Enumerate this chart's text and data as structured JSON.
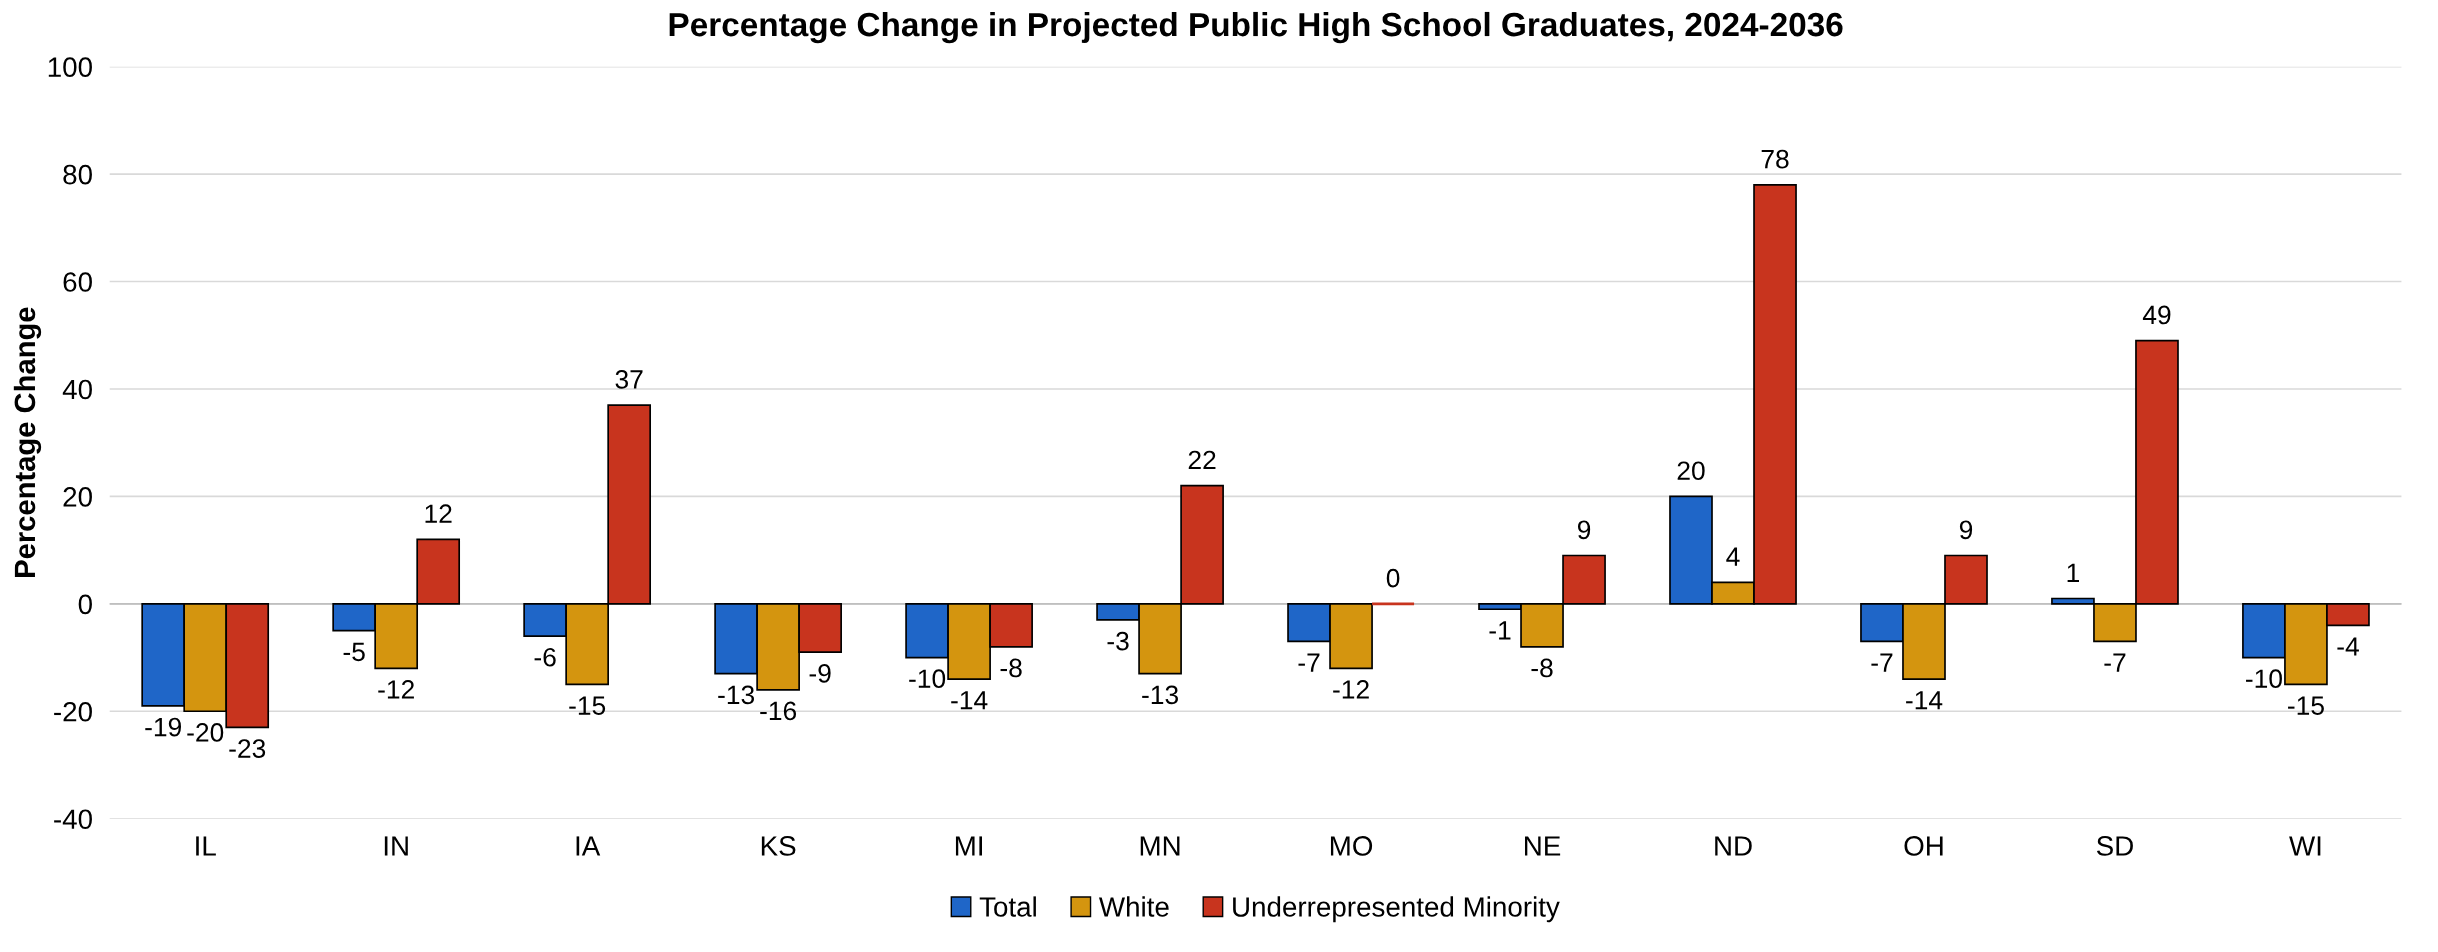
{
  "chart_data": {
    "type": "bar",
    "title": "Percentage Change in Projected Public High School Graduates, 2024-2036",
    "ylabel": "Percentage Change",
    "categories": [
      "IL",
      "IN",
      "IA",
      "KS",
      "MI",
      "MN",
      "MO",
      "NE",
      "ND",
      "OH",
      "SD",
      "WI"
    ],
    "series": [
      {
        "name": "Total",
        "color": "#1f66c8",
        "values": [
          -19,
          -5,
          -6,
          -13,
          -10,
          -3,
          -7,
          -1,
          20,
          -7,
          1,
          -10
        ]
      },
      {
        "name": "White",
        "color": "#d4950f",
        "values": [
          -20,
          -12,
          -15,
          -16,
          -14,
          -13,
          -12,
          -8,
          4,
          -14,
          -7,
          -15
        ]
      },
      {
        "name": "Underrepresented Minority",
        "color": "#c8341e",
        "values": [
          -23,
          12,
          37,
          -9,
          -8,
          22,
          0,
          9,
          78,
          9,
          49,
          -4
        ]
      }
    ],
    "ylim": [
      -40,
      100
    ],
    "yticks": [
      -40,
      -20,
      0,
      20,
      40,
      60,
      80,
      100
    ],
    "grid": "y",
    "legend": "bottom",
    "data_labels": true
  }
}
